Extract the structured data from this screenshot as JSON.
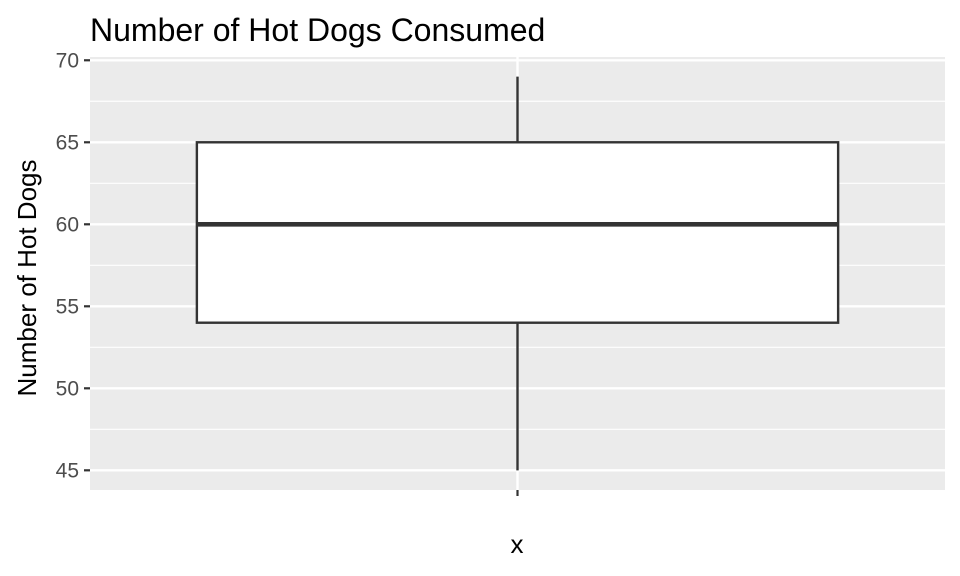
{
  "chart_data": {
    "type": "box",
    "title": "Number of Hot Dogs Consumed",
    "xlabel": "x",
    "ylabel": "Number of Hot Dogs",
    "ylim": [
      43.8,
      70.2
    ],
    "yticks": [
      45,
      50,
      55,
      60,
      65,
      70
    ],
    "ytick_labels": [
      "45",
      "50",
      "55",
      "60",
      "65",
      "70"
    ],
    "categories": [
      ""
    ],
    "boxes": [
      {
        "category": "",
        "min": 45,
        "q1": 54,
        "median": 60,
        "q3": 65,
        "max": 69
      }
    ],
    "grid": true,
    "colors": {
      "panel_background": "#ebebeb",
      "grid_major": "#ffffff",
      "box_fill": "#ffffff",
      "box_stroke": "#333333",
      "tick_color": "#333333",
      "tick_label_color": "#4d4d4d"
    }
  }
}
